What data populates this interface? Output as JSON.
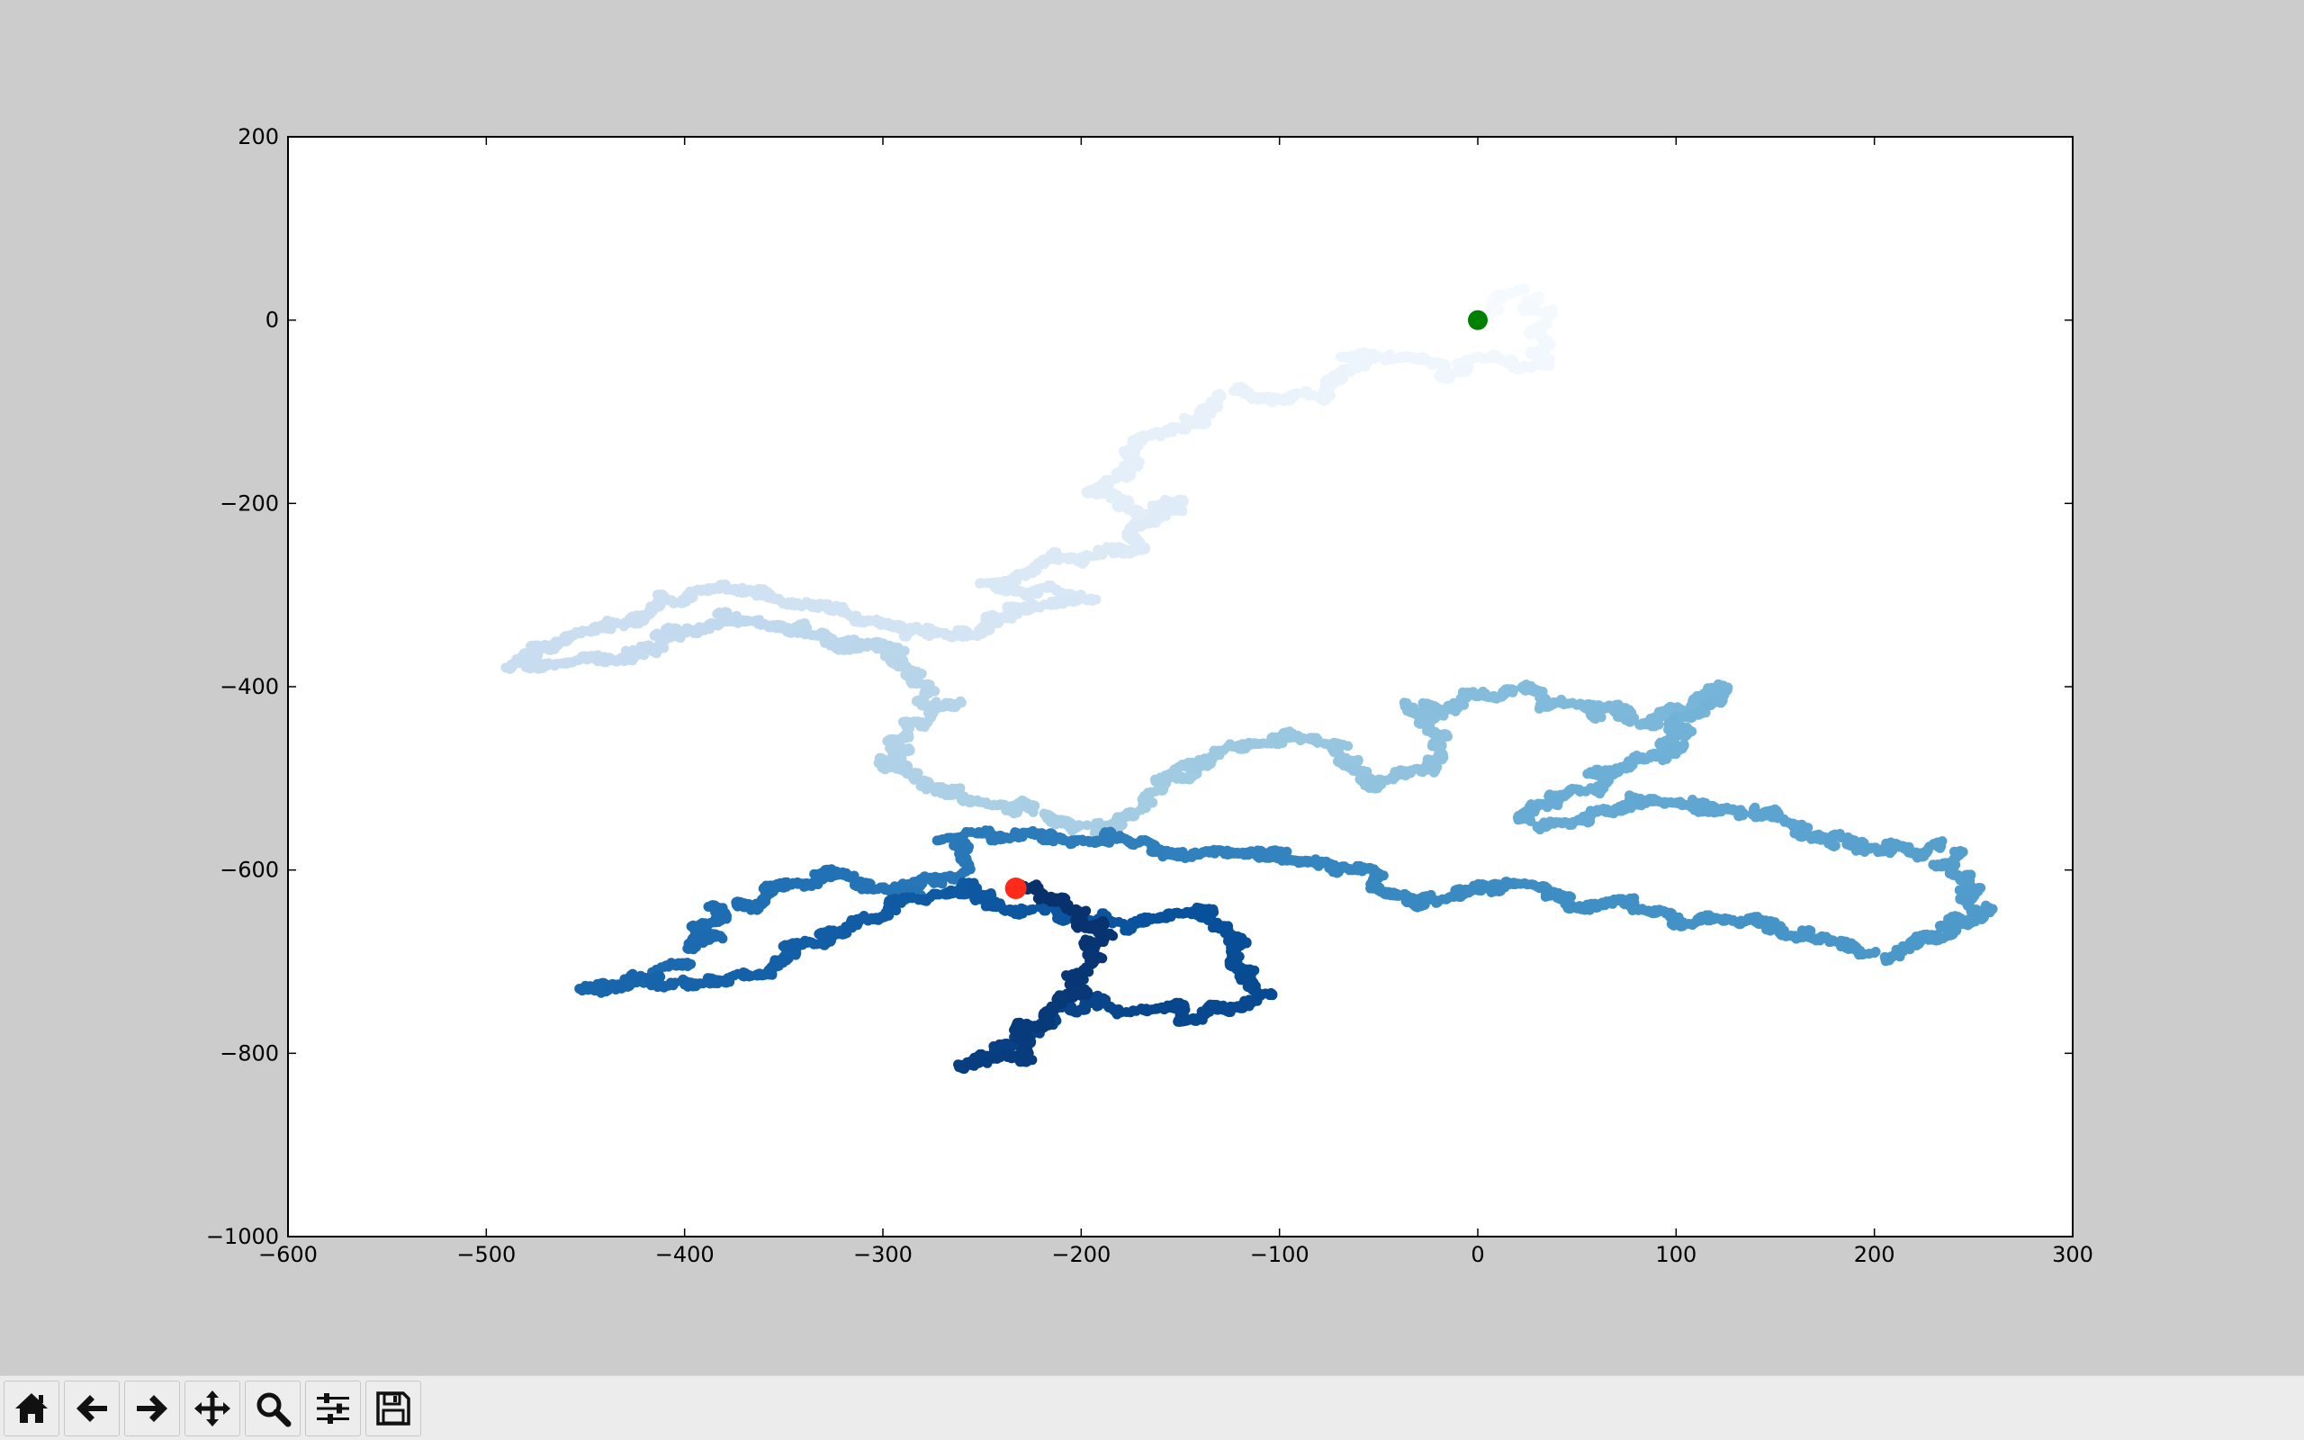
{
  "toolbar": {
    "buttons": [
      {
        "name": "home",
        "icon": "home-icon"
      },
      {
        "name": "back",
        "icon": "arrow-left-icon"
      },
      {
        "name": "forward",
        "icon": "arrow-right-icon"
      },
      {
        "name": "pan",
        "icon": "move-icon"
      },
      {
        "name": "zoom",
        "icon": "magnifier-icon"
      },
      {
        "name": "configure-subplots",
        "icon": "sliders-icon"
      },
      {
        "name": "save",
        "icon": "floppy-disk-icon"
      }
    ]
  },
  "chart_data": {
    "type": "scatter",
    "title": "",
    "xlabel": "",
    "ylabel": "",
    "xlim": [
      -600,
      300
    ],
    "ylim": [
      -1000,
      200
    ],
    "x_ticks": [
      -600,
      -500,
      -400,
      -300,
      -200,
      -100,
      0,
      100,
      200,
      300
    ],
    "y_ticks": [
      200,
      0,
      -200,
      -400,
      -600,
      -800,
      -1000
    ],
    "x_tick_labels": [
      "−600",
      "−500",
      "−400",
      "−300",
      "−200",
      "−100",
      "0",
      "100",
      "200",
      "300"
    ],
    "y_tick_labels": [
      "200",
      "0",
      "−200",
      "−400",
      "−600",
      "−800",
      "−1000"
    ],
    "colormap": "Blues",
    "colors": {
      "figure_bg": "#cccccc",
      "axes_bg": "#ffffff",
      "start_point": "#008000",
      "end_point": "#ff2a1a",
      "cmap_light": "#f7fbff",
      "cmap_dark": "#08306b"
    },
    "walk_waypoints": [
      [
        0,
        0
      ],
      [
        30,
        25
      ],
      [
        35,
        -50
      ],
      [
        -20,
        -50
      ],
      [
        -60,
        -40
      ],
      [
        -80,
        -80
      ],
      [
        -130,
        -80
      ],
      [
        -150,
        -120
      ],
      [
        -175,
        -145
      ],
      [
        -190,
        -190
      ],
      [
        -170,
        -220
      ],
      [
        -150,
        -200
      ],
      [
        -170,
        -250
      ],
      [
        -215,
        -260
      ],
      [
        -240,
        -290
      ],
      [
        -200,
        -300
      ],
      [
        -240,
        -330
      ],
      [
        -290,
        -340
      ],
      [
        -330,
        -310
      ],
      [
        -380,
        -290
      ],
      [
        -420,
        -320
      ],
      [
        -480,
        -380
      ],
      [
        -430,
        -360
      ],
      [
        -380,
        -320
      ],
      [
        -330,
        -350
      ],
      [
        -290,
        -360
      ],
      [
        -270,
        -420
      ],
      [
        -300,
        -480
      ],
      [
        -260,
        -520
      ],
      [
        -220,
        -540
      ],
      [
        -190,
        -560
      ],
      [
        -170,
        -530
      ],
      [
        -150,
        -500
      ],
      [
        -100,
        -450
      ],
      [
        -70,
        -470
      ],
      [
        -50,
        -510
      ],
      [
        -20,
        -470
      ],
      [
        -30,
        -420
      ],
      [
        20,
        -400
      ],
      [
        60,
        -420
      ],
      [
        80,
        -440
      ],
      [
        110,
        -430
      ],
      [
        120,
        -400
      ],
      [
        100,
        -460
      ],
      [
        60,
        -500
      ],
      [
        30,
        -550
      ],
      [
        80,
        -520
      ],
      [
        140,
        -530
      ],
      [
        180,
        -560
      ],
      [
        210,
        -570
      ],
      [
        240,
        -580
      ],
      [
        255,
        -640
      ],
      [
        200,
        -690
      ],
      [
        150,
        -660
      ],
      [
        100,
        -650
      ],
      [
        60,
        -640
      ],
      [
        10,
        -620
      ],
      [
        -30,
        -640
      ],
      [
        -60,
        -600
      ],
      [
        -100,
        -580
      ],
      [
        -160,
        -580
      ],
      [
        -230,
        -560
      ],
      [
        -260,
        -570
      ],
      [
        -280,
        -630
      ],
      [
        -330,
        -600
      ],
      [
        -380,
        -640
      ],
      [
        -400,
        -700
      ],
      [
        -450,
        -730
      ],
      [
        -360,
        -710
      ],
      [
        -300,
        -650
      ],
      [
        -260,
        -620
      ],
      [
        -220,
        -640
      ],
      [
        -180,
        -660
      ],
      [
        -140,
        -640
      ],
      [
        -120,
        -700
      ],
      [
        -110,
        -740
      ],
      [
        -150,
        -760
      ],
      [
        -190,
        -740
      ],
      [
        -230,
        -780
      ],
      [
        -260,
        -810
      ],
      [
        -230,
        -800
      ],
      [
        -200,
        -720
      ],
      [
        -190,
        -660
      ],
      [
        -233,
        -620
      ]
    ],
    "start_point": {
      "x": 0,
      "y": 0
    },
    "end_point": {
      "x": -233,
      "y": -620
    }
  }
}
